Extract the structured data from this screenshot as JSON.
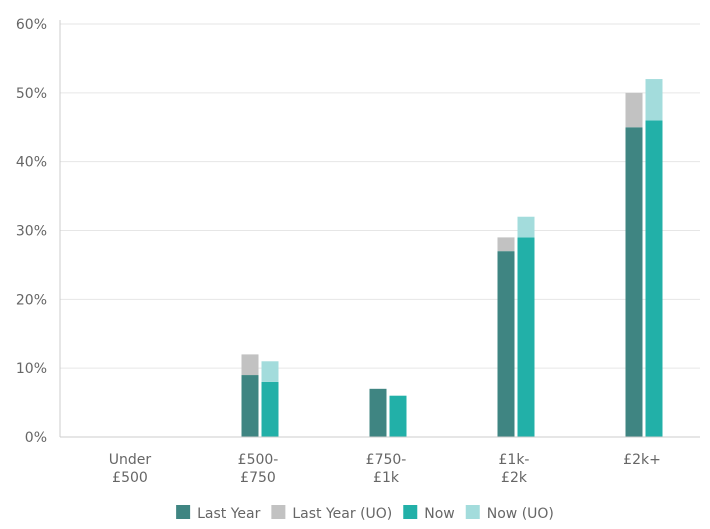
{
  "chart_data": {
    "type": "bar",
    "title": "",
    "xlabel": "",
    "ylabel": "",
    "ylim": [
      0,
      60
    ],
    "yticks": [
      "0%",
      "10%",
      "20%",
      "30%",
      "40%",
      "50%",
      "60%"
    ],
    "grid": true,
    "legend_position": "bottom",
    "categories": [
      [
        "Under",
        "£500"
      ],
      [
        "£500-",
        "£750"
      ],
      [
        "£750-",
        "£1k"
      ],
      [
        "£1k-",
        "£2k"
      ],
      [
        "£2k+"
      ]
    ],
    "series": [
      {
        "name": "Last Year",
        "color": "#3f8582",
        "group": "last_year",
        "values": [
          0,
          9,
          7,
          27,
          45
        ]
      },
      {
        "name": "Last Year (UO)",
        "color": "#c2c2c2",
        "group": "last_year",
        "values": [
          0,
          3,
          0,
          2,
          5
        ]
      },
      {
        "name": "Now",
        "color": "#22b0a8",
        "group": "now",
        "values": [
          0,
          8,
          6,
          29,
          46
        ]
      },
      {
        "name": "Now (UO)",
        "color": "#a3dcdc",
        "group": "now",
        "values": [
          0,
          3,
          0,
          3,
          6
        ]
      }
    ]
  }
}
